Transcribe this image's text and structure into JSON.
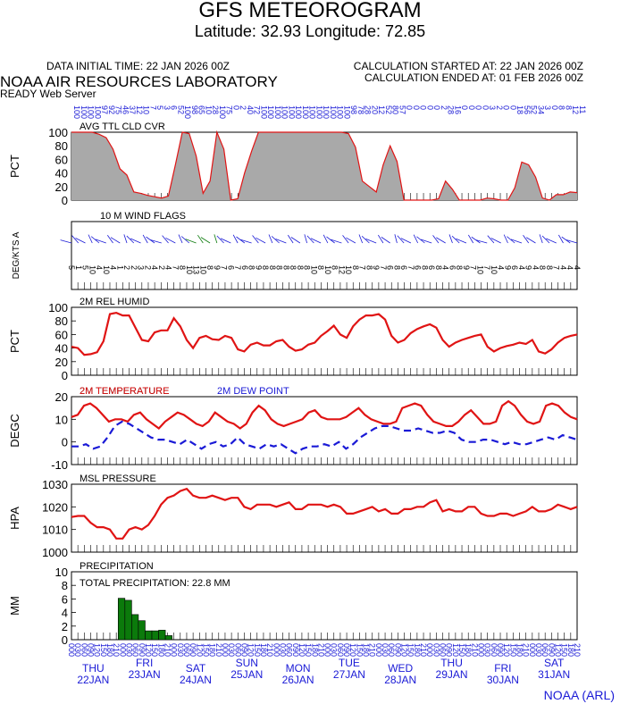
{
  "header": {
    "title": "GFS METEOROGRAM",
    "subtitle": "Latitude: 32.93 Longitude:  72.85",
    "init_time": "DATA INITIAL TIME: 22 JAN 2026 00Z",
    "calc_started": "CALCULATION STARTED AT: 22 JAN 2026 00Z",
    "calc_ended": "CALCULATION ENDED AT: 01 FEB 2026 00Z",
    "lab": "NOAA AIR RESOURCES LABORATORY",
    "server": "READY Web Server",
    "credit": "NOAA (ARL)"
  },
  "chart_data": [
    {
      "type": "area",
      "title": "AVG TTL CLD CVR",
      "ylabel": "PCT",
      "ylim": [
        0,
        100
      ],
      "yticks": [
        "100",
        "80",
        "60",
        "40",
        "20",
        "0"
      ],
      "values": [
        100,
        100,
        100,
        100,
        97,
        92,
        75,
        46,
        37,
        12,
        10,
        7,
        5,
        3,
        6,
        52,
        100,
        98,
        65,
        10,
        28,
        100,
        75,
        0,
        2,
        40,
        72,
        100,
        100,
        100,
        100,
        100,
        100,
        100,
        100,
        100,
        100,
        100,
        100,
        100,
        98,
        78,
        28,
        20,
        12,
        52,
        80,
        57,
        0,
        0,
        0,
        0,
        0,
        2,
        28,
        16,
        0,
        0,
        0,
        0,
        3,
        2,
        0,
        0,
        18,
        56,
        52,
        34,
        3,
        0,
        8,
        8,
        12,
        11
      ]
    },
    {
      "type": "wind-flags",
      "title": "10 M  WIND FLAGS",
      "ylabel": "DEG/KTS  A",
      "speeds": [
        "5",
        "1",
        "5",
        "10",
        "4",
        "10",
        "4",
        "1",
        "2",
        "2",
        "3",
        "2",
        "4",
        "2",
        "4",
        "7",
        "8",
        "10",
        "13",
        "10",
        "8",
        "9",
        "7",
        "6",
        "7",
        "6",
        "8",
        "9",
        "8",
        "8",
        "8",
        "8",
        "8",
        "8",
        "8",
        "10",
        "8",
        "10",
        "8",
        "12",
        "10",
        "8",
        "7",
        "8",
        "9",
        "7",
        "6",
        "8",
        "6",
        "7",
        "6",
        "8",
        "6",
        "8",
        "4",
        "6",
        "8",
        "9",
        "7",
        "10",
        "7",
        "10",
        "4",
        "9",
        "6",
        "4",
        "9",
        "4",
        "8",
        "8",
        "7",
        "4",
        "4",
        "4"
      ]
    },
    {
      "type": "line",
      "title": "2M REL HUMID",
      "ylabel": "PCT",
      "ylim": [
        0,
        100
      ],
      "yticks": [
        "100",
        "80",
        "60",
        "40",
        "20",
        "0"
      ],
      "values": [
        42,
        40,
        30,
        31,
        34,
        50,
        90,
        92,
        88,
        88,
        70,
        52,
        50,
        63,
        66,
        66,
        84,
        72,
        52,
        40,
        55,
        58,
        53,
        52,
        58,
        55,
        38,
        35,
        45,
        48,
        44,
        44,
        50,
        52,
        42,
        36,
        38,
        45,
        48,
        58,
        65,
        73,
        60,
        55,
        72,
        82,
        88,
        88,
        90,
        82,
        58,
        48,
        52,
        62,
        68,
        72,
        75,
        70,
        52,
        42,
        48,
        52,
        55,
        58,
        60,
        42,
        35,
        40,
        43,
        45,
        48,
        46,
        52,
        35,
        32,
        38,
        48,
        55,
        58,
        60
      ]
    },
    {
      "type": "line",
      "title": "2M TEMPERATURE",
      "ylabel": "DEGC",
      "ylim": [
        -10,
        20
      ],
      "yticks": [
        "20",
        "10",
        "0",
        "-10"
      ],
      "series": [
        {
          "name": "2M TEMPERATURE",
          "color": "#e01414",
          "values": [
            11,
            12,
            16,
            17,
            15,
            12,
            9,
            10,
            10,
            9,
            12,
            13,
            10,
            8,
            6,
            9,
            11,
            13,
            12,
            10,
            8,
            7,
            9,
            13,
            11,
            9,
            8,
            6,
            8,
            13,
            16,
            14,
            10,
            8,
            7,
            8,
            9,
            10,
            13,
            14,
            11,
            10,
            10,
            10,
            11,
            13,
            15,
            12,
            10,
            9,
            8,
            8,
            9,
            15,
            16,
            17,
            16,
            12,
            9,
            8,
            7,
            7,
            9,
            12,
            14,
            11,
            8,
            8,
            9,
            16,
            18,
            16,
            12,
            9,
            8,
            9,
            16,
            17,
            16,
            13,
            11,
            10
          ]
        },
        {
          "name": "2M  DEW POINT",
          "color": "#1a1ad6",
          "dashed": true,
          "values": [
            -2,
            -2,
            -1,
            -3,
            -2,
            2,
            7,
            9,
            8,
            6,
            4,
            2,
            1,
            1,
            0,
            -1,
            1,
            -1,
            -3,
            -1,
            0,
            -2,
            -1,
            2,
            -1,
            -2,
            -3,
            -1,
            -2,
            -1,
            -3,
            -5,
            -3,
            -2,
            -2,
            -1,
            -2,
            0,
            -3,
            -1,
            2,
            4,
            6,
            7,
            7,
            6,
            5,
            5,
            6,
            5,
            4,
            4,
            5,
            4,
            1,
            0,
            0,
            1,
            1,
            0,
            -1,
            0,
            -1,
            -1,
            0,
            1,
            2,
            1,
            3,
            2,
            1
          ]
        }
      ]
    },
    {
      "type": "line",
      "title": "MSL PRESSURE",
      "ylabel": "HPA",
      "ylim": [
        1000,
        1030
      ],
      "yticks": [
        "1030",
        "1020",
        "1010",
        "1000"
      ],
      "values": [
        1015.5,
        1016,
        1016,
        1013,
        1011,
        1011,
        1010,
        1006,
        1006,
        1010,
        1011,
        1010,
        1012,
        1016,
        1021,
        1024,
        1025,
        1027,
        1028,
        1025,
        1024,
        1024,
        1025,
        1024,
        1023,
        1024,
        1024,
        1020,
        1019,
        1021,
        1021,
        1021,
        1020,
        1021,
        1022,
        1019,
        1019,
        1021,
        1021,
        1021,
        1020,
        1021,
        1020,
        1017,
        1017,
        1018,
        1019,
        1020,
        1018,
        1019,
        1017,
        1017,
        1019,
        1019,
        1020,
        1020,
        1022,
        1023,
        1018,
        1019,
        1018,
        1018,
        1020,
        1020,
        1017,
        1016,
        1016,
        1017,
        1017,
        1016,
        1017,
        1018,
        1020,
        1018,
        1018,
        1019,
        1021,
        1020,
        1019,
        1020
      ]
    },
    {
      "type": "bar",
      "title": "PRECIPITATION",
      "ylabel": "MM",
      "ylim": [
        0,
        10
      ],
      "yticks": [
        "10",
        "8",
        "6",
        "4",
        "2",
        "0"
      ],
      "total_label": "TOTAL PRECIPITATION:  22.8 MM",
      "values": [
        0,
        0,
        0,
        0,
        0,
        0,
        6.1,
        5.8,
        3.7,
        2.8,
        1.3,
        1.3,
        1.4,
        0.6,
        0,
        0,
        0,
        0,
        0,
        0,
        0,
        0,
        0,
        0,
        0,
        0,
        0,
        0,
        0,
        0,
        0,
        0,
        0,
        0,
        0,
        0,
        0,
        0,
        0,
        0,
        0,
        0,
        0,
        0,
        0,
        0,
        0,
        0,
        0,
        0,
        0,
        0,
        0,
        0,
        0,
        0,
        0,
        0,
        0,
        0,
        0,
        0,
        0,
        0,
        0,
        0,
        0,
        0,
        0,
        0,
        0,
        0,
        0,
        0,
        0,
        0
      ]
    }
  ],
  "time_axis": {
    "hours": [
      "00",
      "03",
      "06",
      "09",
      "12",
      "15",
      "18",
      "21"
    ],
    "days": [
      {
        "dow": "THU",
        "date": "22JAN"
      },
      {
        "dow": "FRI",
        "date": "23JAN"
      },
      {
        "dow": "SAT",
        "date": "24JAN"
      },
      {
        "dow": "SUN",
        "date": "25JAN"
      },
      {
        "dow": "MON",
        "date": "26JAN"
      },
      {
        "dow": "TUE",
        "date": "27JAN"
      },
      {
        "dow": "WED",
        "date": "28JAN"
      },
      {
        "dow": "THU",
        "date": "29JAN"
      },
      {
        "dow": "FRI",
        "date": "30JAN"
      },
      {
        "dow": "SAT",
        "date": "31JAN"
      }
    ]
  },
  "colors": {
    "cloud_fill": "#a9a9a9",
    "cloud_line": "#e01414",
    "red": "#e01414",
    "blue": "#1a1ad6",
    "precip": "#0b7a0b",
    "wind_blue": "#1a1ad6",
    "wind_green": "#0b7a0b"
  }
}
